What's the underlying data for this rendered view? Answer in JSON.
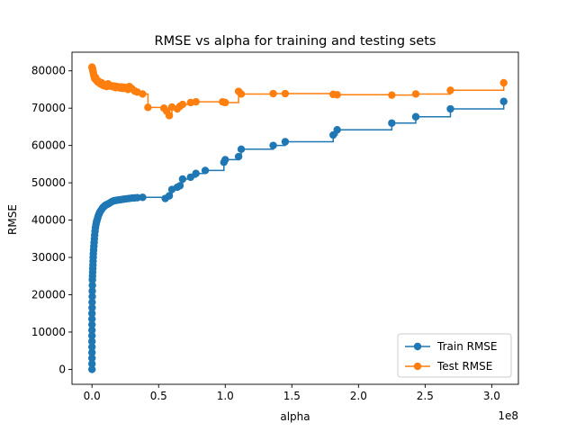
{
  "chart_data": {
    "type": "line",
    "title": "RMSE vs alpha for training and testing sets",
    "xlabel": "alpha",
    "ylabel": "RMSE",
    "x_offset_text": "1e8",
    "xlim": [
      -0.15,
      3.2
    ],
    "ylim": [
      -4000,
      85000
    ],
    "x_ticks": [
      0.0,
      0.5,
      1.0,
      1.5,
      2.0,
      2.5,
      3.0
    ],
    "x_tick_labels": [
      "0.0",
      "0.5",
      "1.0",
      "1.5",
      "2.0",
      "2.5",
      "3.0"
    ],
    "y_ticks": [
      0,
      10000,
      20000,
      30000,
      40000,
      50000,
      60000,
      70000,
      80000
    ],
    "y_tick_labels": [
      "0",
      "10000",
      "20000",
      "30000",
      "40000",
      "50000",
      "60000",
      "70000",
      "80000"
    ],
    "grid": false,
    "legend_position": "lower-right",
    "drawstyle": "steps-post",
    "marker": "circle",
    "series": [
      {
        "name": "Train RMSE",
        "color": "#1f77b4",
        "x": [
          0,
          0,
          0,
          0,
          0,
          0,
          0,
          0,
          0,
          0,
          0,
          0.001,
          0.001,
          0.002,
          0.002,
          0.003,
          0.003,
          0.004,
          0.005,
          0.006,
          0.007,
          0.008,
          0.009,
          0.01,
          0.012,
          0.014,
          0.016,
          0.018,
          0.02,
          0.023,
          0.026,
          0.03,
          0.034,
          0.038,
          0.043,
          0.048,
          0.054,
          0.06,
          0.067,
          0.075,
          0.083,
          0.092,
          0.102,
          0.113,
          0.125,
          0.138,
          0.152,
          0.167,
          0.183,
          0.2,
          0.218,
          0.237,
          0.257,
          0.278,
          0.3,
          0.32,
          0.34,
          0.38,
          0.55,
          0.58,
          0.6,
          0.64,
          0.66,
          0.68,
          0.74,
          0.78,
          0.85,
          0.99,
          1.0,
          1.1,
          1.12,
          1.36,
          1.45,
          1.81,
          1.84,
          2.25,
          2.43,
          2.69,
          3.09
        ],
        "y": [
          0,
          1500,
          3000,
          4500,
          6000,
          7500,
          9000,
          10500,
          12000,
          13500,
          15000,
          16500,
          18000,
          19500,
          21000,
          22500,
          24000,
          25000,
          26000,
          27000,
          28000,
          29000,
          30000,
          31000,
          32000,
          33000,
          34000,
          35000,
          36000,
          37000,
          38000,
          38800,
          39500,
          40000,
          40600,
          41200,
          41700,
          42200,
          42600,
          43000,
          43400,
          43700,
          44000,
          44200,
          44400,
          44700,
          45000,
          45200,
          45300,
          45400,
          45500,
          45600,
          45700,
          45800,
          45900,
          45950,
          46000,
          46100,
          45800,
          46500,
          48200,
          48800,
          49200,
          51000,
          51500,
          52500,
          53300,
          55500,
          56200,
          57000,
          59000,
          60000,
          61000,
          62800,
          64200,
          66000,
          67700,
          69800,
          71800
        ]
      },
      {
        "name": "Test RMSE",
        "color": "#ff7f0e",
        "x": [
          0,
          0.002,
          0.004,
          0.006,
          0.008,
          0.01,
          0.013,
          0.016,
          0.02,
          0.024,
          0.028,
          0.033,
          0.038,
          0.044,
          0.05,
          0.057,
          0.064,
          0.072,
          0.08,
          0.09,
          0.1,
          0.11,
          0.12,
          0.13,
          0.14,
          0.15,
          0.16,
          0.17,
          0.18,
          0.19,
          0.2,
          0.21,
          0.22,
          0.23,
          0.24,
          0.25,
          0.26,
          0.27,
          0.28,
          0.29,
          0.3,
          0.32,
          0.34,
          0.38,
          0.42,
          0.54,
          0.56,
          0.58,
          0.6,
          0.64,
          0.66,
          0.68,
          0.74,
          0.78,
          0.98,
          1.0,
          1.1,
          1.12,
          1.36,
          1.45,
          1.81,
          1.84,
          2.25,
          2.43,
          2.69,
          3.09
        ],
        "y": [
          81000,
          80800,
          80500,
          80200,
          79800,
          79500,
          79000,
          78500,
          78000,
          77800,
          78200,
          77500,
          77300,
          77000,
          77200,
          76800,
          76500,
          76800,
          76200,
          76000,
          76300,
          75800,
          76500,
          76100,
          75900,
          76000,
          75700,
          75900,
          75500,
          75800,
          75600,
          75400,
          75700,
          75300,
          75600,
          75500,
          75200,
          75000,
          75800,
          75400,
          75200,
          74600,
          74300,
          73800,
          70200,
          70000,
          69200,
          68000,
          70300,
          69800,
          70500,
          71000,
          71500,
          71700,
          71700,
          71500,
          74500,
          73800,
          73900,
          73900,
          73700,
          73600,
          73500,
          73800,
          74800,
          76800
        ]
      }
    ]
  }
}
